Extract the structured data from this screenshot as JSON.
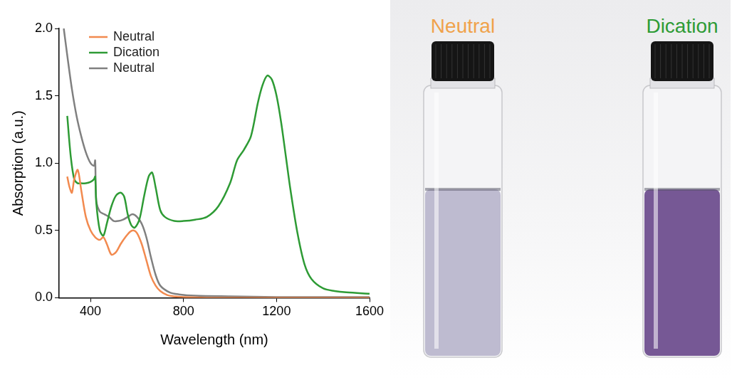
{
  "chart_data": {
    "type": "line",
    "x_label": "Wavelength (nm)",
    "y_label": "Absorption (a.u.)",
    "xlim": [
      265,
      1600
    ],
    "xticks": [
      400,
      800,
      1200,
      1600
    ],
    "ylim": [
      0,
      2
    ],
    "yticks": [
      {
        "value": 0,
        "label": "0.0"
      },
      0.5,
      {
        "value": 1,
        "label": "1.0"
      },
      1.5,
      {
        "value": 2,
        "label": "2.0"
      }
    ],
    "grid": false,
    "legend": "upper left",
    "series": [
      {
        "name": "Neutral",
        "color": "#f28a4f",
        "x": [
          300,
          310,
          320,
          330,
          345,
          360,
          380,
          400,
          420,
          440,
          455,
          470,
          490,
          510,
          530,
          550,
          570,
          585,
          600,
          620,
          640,
          660,
          680,
          700,
          730,
          760,
          800,
          900,
          1000,
          1200,
          1400,
          1600
        ],
        "values": [
          0.9,
          0.82,
          0.78,
          0.88,
          0.95,
          0.8,
          0.6,
          0.5,
          0.45,
          0.43,
          0.45,
          0.4,
          0.32,
          0.34,
          0.4,
          0.45,
          0.49,
          0.5,
          0.48,
          0.4,
          0.28,
          0.16,
          0.09,
          0.05,
          0.02,
          0.01,
          0.005,
          0,
          0,
          0,
          0,
          0
        ]
      },
      {
        "name": "Dication",
        "color": "#2e9b35",
        "x": [
          300,
          315,
          330,
          345,
          360,
          380,
          400,
          415,
          420,
          425,
          440,
          455,
          470,
          490,
          510,
          530,
          545,
          560,
          575,
          590,
          610,
          630,
          650,
          665,
          680,
          700,
          720,
          760,
          800,
          850,
          900,
          950,
          1000,
          1030,
          1060,
          1090,
          1120,
          1140,
          1160,
          1180,
          1200,
          1220,
          1240,
          1260,
          1290,
          1320,
          1350,
          1400,
          1450,
          1500,
          1600
        ],
        "values": [
          1.35,
          1.05,
          0.88,
          0.85,
          0.85,
          0.85,
          0.86,
          0.88,
          0.9,
          0.7,
          0.5,
          0.46,
          0.55,
          0.68,
          0.76,
          0.78,
          0.75,
          0.62,
          0.54,
          0.52,
          0.58,
          0.75,
          0.9,
          0.93,
          0.82,
          0.65,
          0.6,
          0.57,
          0.57,
          0.58,
          0.6,
          0.68,
          0.85,
          1.02,
          1.1,
          1.2,
          1.45,
          1.58,
          1.65,
          1.62,
          1.5,
          1.3,
          1.05,
          0.8,
          0.48,
          0.25,
          0.14,
          0.07,
          0.05,
          0.04,
          0.03
        ]
      },
      {
        "name": "Neutral",
        "color": "#808080",
        "x": [
          285,
          300,
          320,
          340,
          360,
          380,
          400,
          415,
          420,
          425,
          440,
          460,
          480,
          500,
          520,
          540,
          560,
          580,
          600,
          620,
          640,
          660,
          680,
          700,
          740,
          780,
          850,
          1000,
          1200,
          1600
        ],
        "values": [
          2.0,
          1.8,
          1.55,
          1.35,
          1.2,
          1.08,
          1.0,
          0.98,
          1.02,
          0.72,
          0.64,
          0.62,
          0.6,
          0.57,
          0.57,
          0.58,
          0.6,
          0.62,
          0.6,
          0.55,
          0.45,
          0.3,
          0.17,
          0.09,
          0.04,
          0.025,
          0.015,
          0.01,
          0.005,
          0.005
        ]
      }
    ]
  },
  "photo": {
    "labels": [
      {
        "text": "Neutral",
        "color": "#f0a24a"
      },
      {
        "text": "Dication",
        "color": "#2e9b35"
      }
    ]
  }
}
